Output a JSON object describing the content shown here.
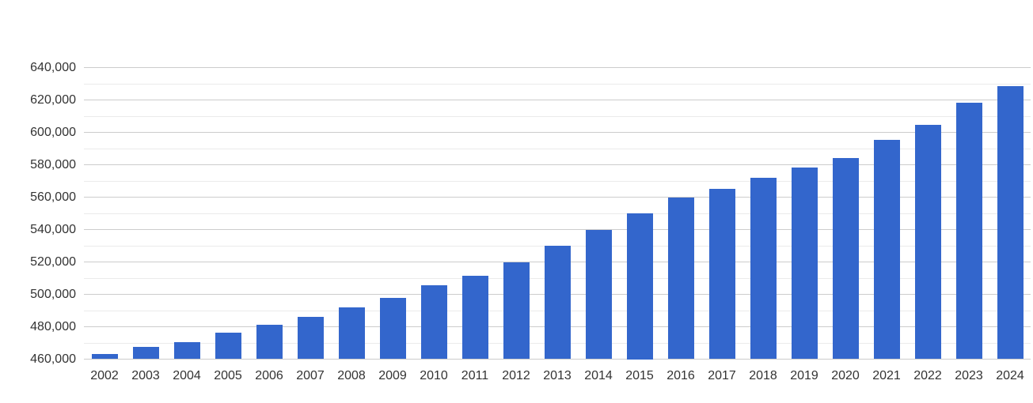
{
  "page": {
    "background_color": "#ffffff"
  },
  "chart_data": {
    "type": "bar",
    "categories": [
      "2002",
      "2003",
      "2004",
      "2005",
      "2006",
      "2007",
      "2008",
      "2009",
      "2010",
      "2011",
      "2012",
      "2013",
      "2014",
      "2015",
      "2016",
      "2017",
      "2018",
      "2019",
      "2020",
      "2021",
      "2022",
      "2023",
      "2024"
    ],
    "values": [
      463400,
      467600,
      470700,
      476200,
      481100,
      486100,
      492000,
      497600,
      505500,
      511600,
      519800,
      529900,
      539800,
      550000,
      559700,
      565300,
      571800,
      578100,
      584300,
      595300,
      604500,
      618400,
      628600
    ],
    "ylim": [
      460000,
      640000
    ],
    "y_major_step": 20000,
    "y_minor_step": 10000,
    "y_tick_labels": [
      "460,000",
      "480,000",
      "500,000",
      "520,000",
      "540,000",
      "560,000",
      "580,000",
      "600,000",
      "620,000",
      "640,000"
    ],
    "grid": true,
    "legend_position": "none",
    "bar_color": "#3366cc",
    "major_grid_color": "#cccccc",
    "minor_grid_color": "#ebebeb",
    "label_color": "#333333"
  }
}
